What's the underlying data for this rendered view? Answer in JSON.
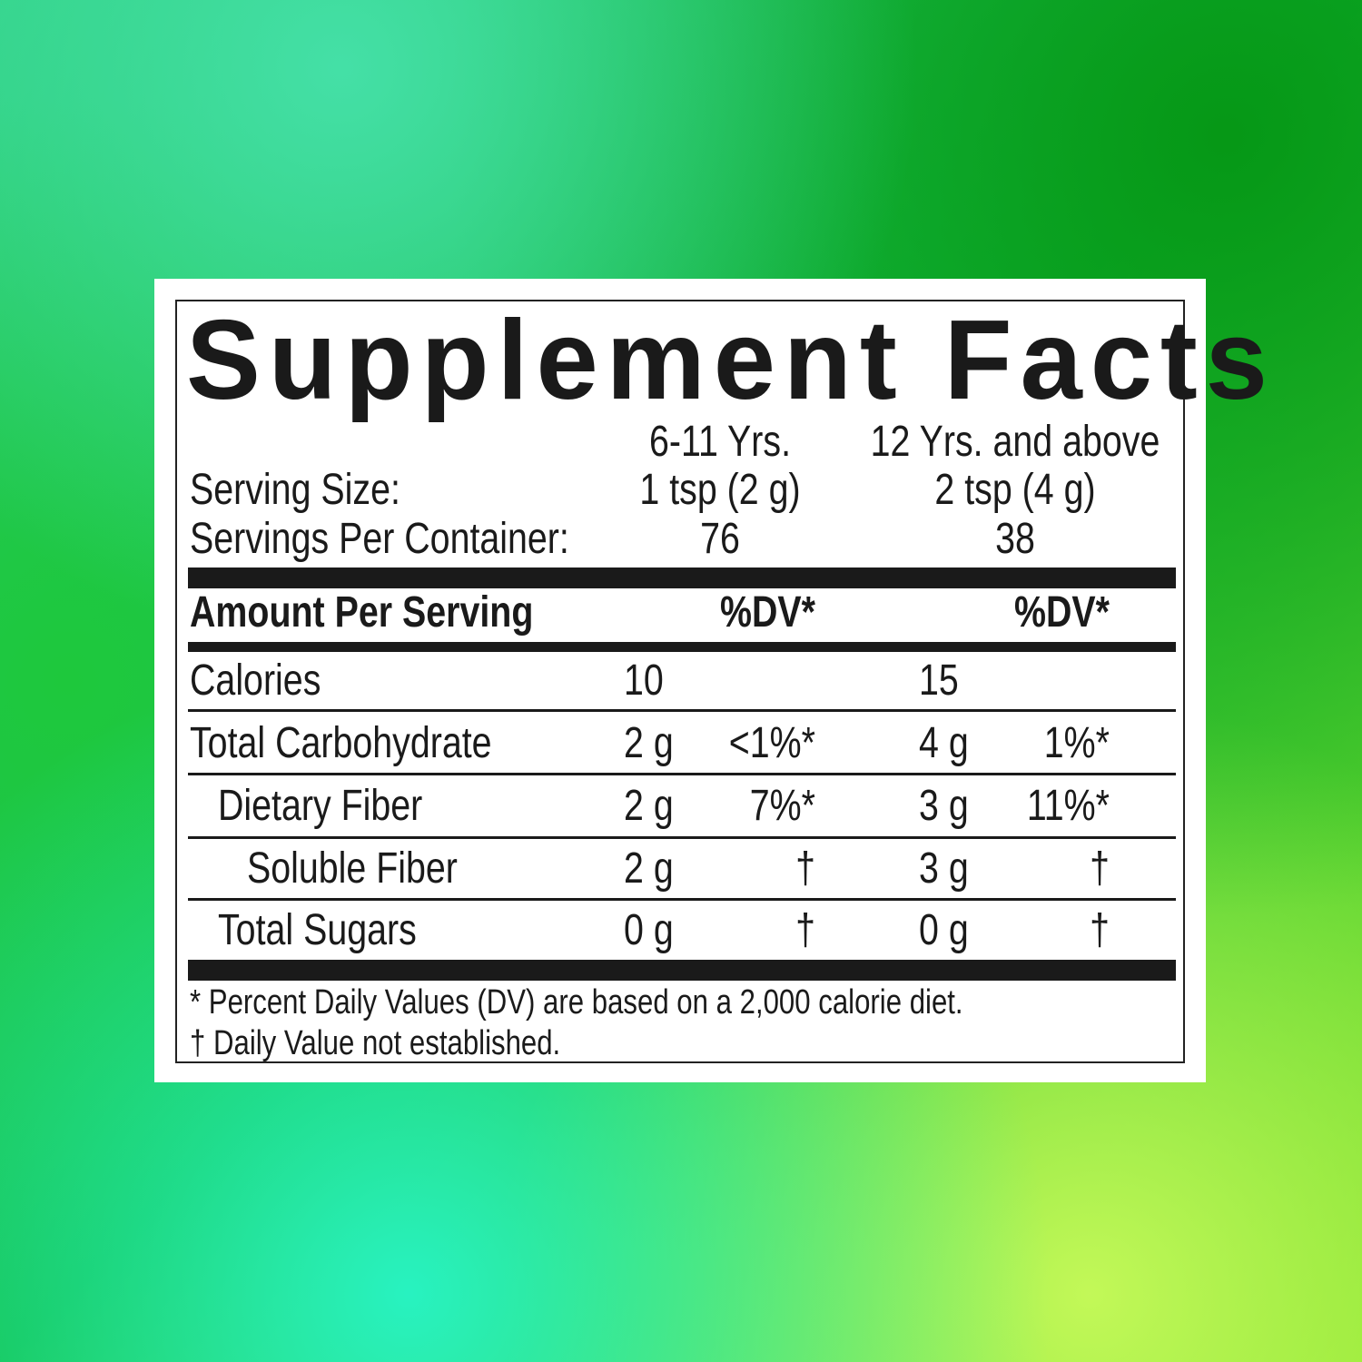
{
  "title": "Supplement Facts",
  "columns": [
    {
      "age": "6-11 Yrs.",
      "serving_size": "1 tsp (2 g)",
      "servings_per_container": "76",
      "dv_header": "%DV*"
    },
    {
      "age": "12 Yrs. and above",
      "serving_size": "2 tsp (4 g)",
      "servings_per_container": "38",
      "dv_header": "%DV*"
    }
  ],
  "serving_size_label": "Serving Size:",
  "servings_per_container_label": "Servings Per Container:",
  "amount_per_serving_label": "Amount Per Serving",
  "rows": [
    {
      "name": "Calories",
      "c1_amount": "10",
      "c1_dv": "",
      "c2_amount": "15",
      "c2_dv": ""
    },
    {
      "name": "Total Carbohydrate",
      "c1_amount": "2 g",
      "c1_dv": "<1%*",
      "c2_amount": "4 g",
      "c2_dv": "1%*"
    },
    {
      "name": "Dietary Fiber",
      "c1_amount": "2 g",
      "c1_dv": "7%*",
      "c2_amount": "3 g",
      "c2_dv": "11%*"
    },
    {
      "name": "Soluble Fiber",
      "c1_amount": "2 g",
      "c1_dv": "†",
      "c2_amount": "3 g",
      "c2_dv": "†"
    },
    {
      "name": "Total Sugars",
      "c1_amount": "0 g",
      "c1_dv": "†",
      "c2_amount": "0 g",
      "c2_dv": "†"
    }
  ],
  "footnotes": [
    "* Percent Daily Values (DV) are based on a 2,000 calorie diet.",
    "† Daily Value not established."
  ]
}
